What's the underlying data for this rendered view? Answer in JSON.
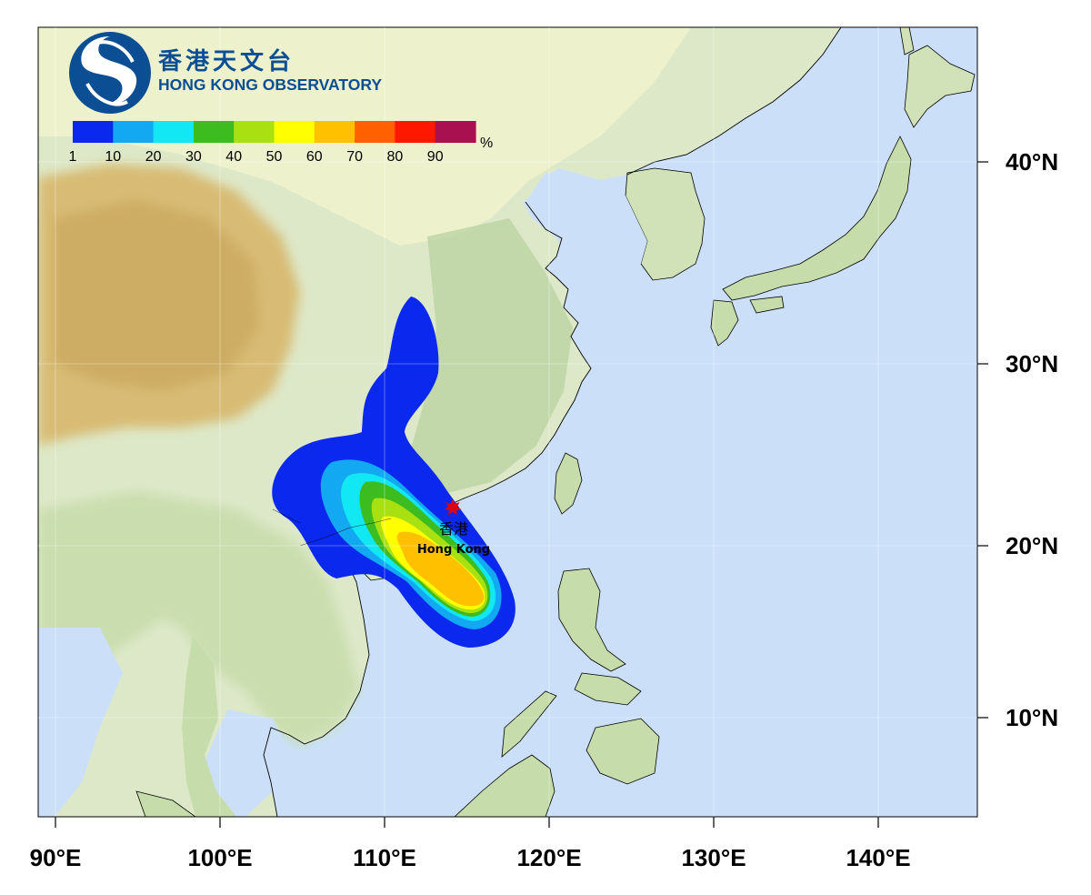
{
  "organization": {
    "name_zh": "香港天文台",
    "name_en": "HONG KONG OBSERVATORY"
  },
  "color_scale": {
    "unit": "%",
    "tick_labels": [
      "1",
      "10",
      "20",
      "30",
      "40",
      "50",
      "60",
      "70",
      "80",
      "90"
    ],
    "colors": [
      "#0a28ee",
      "#12a8f2",
      "#12e8f4",
      "#3cbc1e",
      "#a8e012",
      "#ffff00",
      "#ffc000",
      "#ff6000",
      "#ff1800",
      "#a81050"
    ]
  },
  "place": {
    "name_zh": "香港",
    "name_en": "Hong Kong",
    "marker_color": "#e00000"
  },
  "axes": {
    "longitude_labels": [
      "90°E",
      "100°E",
      "110°E",
      "120°E",
      "130°E",
      "140°E"
    ],
    "latitude_labels": [
      "40°N",
      "30°N",
      "20°N",
      "10°N"
    ]
  },
  "map_colors": {
    "sea": "#cbe0f8",
    "lowland": "#dde8c8",
    "plain": "#eef2cc",
    "forest": "#b8d2a0",
    "plateau": "#d8bc74",
    "plateau_high": "#c8a45a"
  }
}
